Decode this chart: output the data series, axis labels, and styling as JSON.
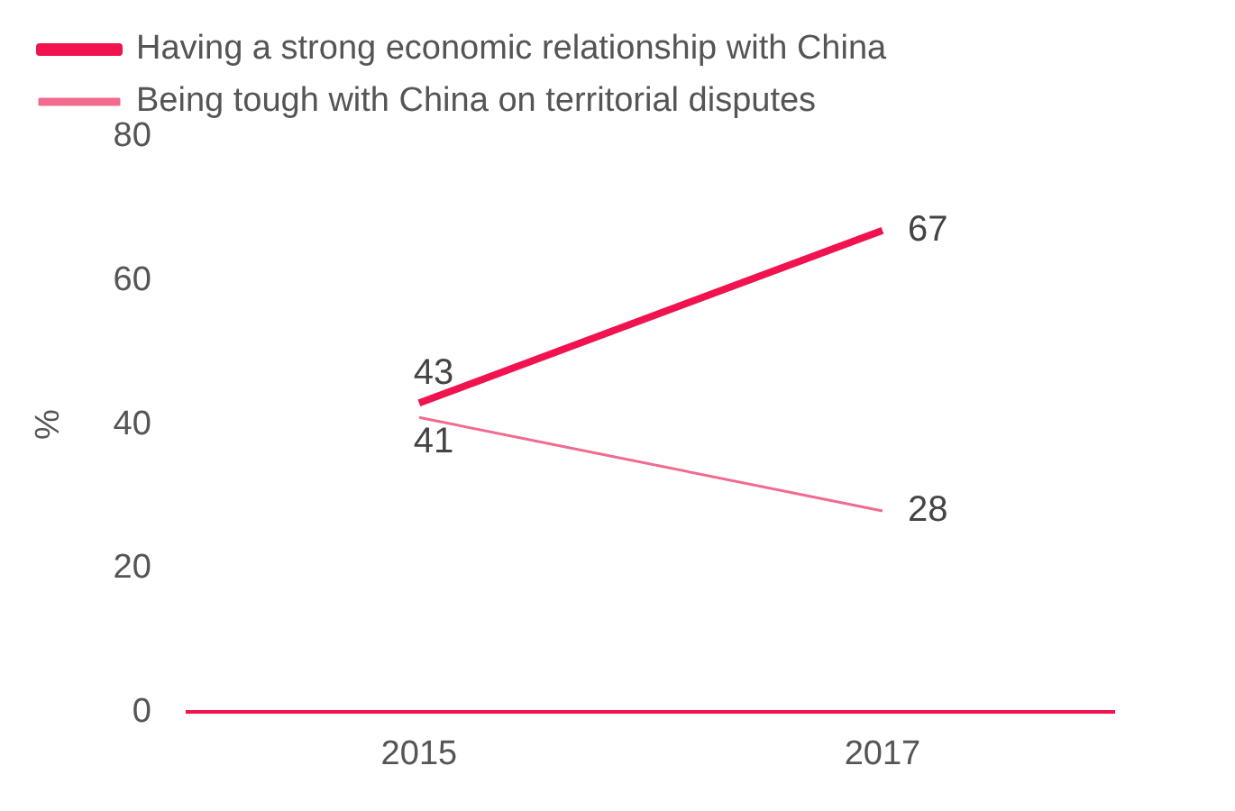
{
  "chart_data": {
    "type": "line",
    "categories": [
      "2015",
      "2017"
    ],
    "series": [
      {
        "name": "Having a strong economic relationship with China",
        "color": "#f0134f",
        "values": [
          43,
          67
        ]
      },
      {
        "name": "Being tough with China on territorial disputes",
        "color": "#f26a8d",
        "values": [
          41,
          28
        ]
      }
    ],
    "ylabel": "%",
    "ylim": [
      0,
      80
    ],
    "yticks": [
      0,
      20,
      40,
      60,
      80
    ],
    "grid": false,
    "legend": "top left",
    "data_labels": true,
    "marker": "none",
    "line_style": "solid"
  }
}
